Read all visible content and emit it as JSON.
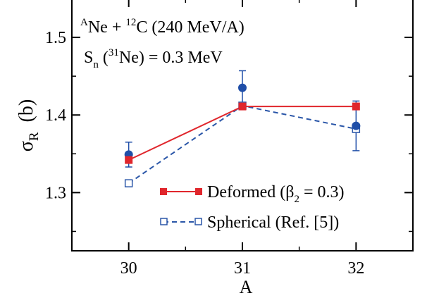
{
  "chart_data": {
    "type": "line",
    "xlabel": "A",
    "ylabel_main": "σ",
    "ylabel_sub": "R",
    "ylabel_unit": "(b)",
    "xlim": [
      29.5,
      32.5
    ],
    "ylim": [
      1.225,
      1.55
    ],
    "x_ticks": [
      30,
      31,
      32
    ],
    "x_tick_labels": [
      "30",
      "31",
      "32"
    ],
    "y_ticks": [
      1.3,
      1.4,
      1.5
    ],
    "y_tick_labels": [
      "1.3",
      "1.4",
      "1.5"
    ],
    "y_minor_ticks": [
      1.25,
      1.35,
      1.45
    ],
    "grid": false,
    "legend_position": "bottom-right",
    "annotations": {
      "reaction": {
        "a_sup": "A",
        "ne": "Ne + ",
        "c_sup": "12",
        "c": "C  (240 MeV/A)"
      },
      "separation": {
        "s": "S",
        "n_sub": "n",
        "open": " (",
        "mass_sup": "31",
        "rest": "Ne) = 0.3 MeV"
      }
    },
    "series": [
      {
        "name_main": "Deformed (β",
        "name_sub": "2",
        "name_rest": " = 0.3)",
        "color": "#e0262c",
        "line_style": "solid",
        "marker": "filled-square",
        "x": [
          30,
          31,
          32
        ],
        "y": [
          1.342,
          1.411,
          1.411
        ]
      },
      {
        "name_main": "Spherical (Ref. [5])",
        "color": "#2a56a8",
        "line_style": "dashed",
        "marker": "open-square",
        "x": [
          30,
          31,
          32
        ],
        "y": [
          1.312,
          1.412,
          1.382
        ]
      }
    ],
    "experiment": {
      "color": "#1f4ea8",
      "marker": "filled-circle",
      "x": [
        30,
        31,
        32
      ],
      "y": [
        1.349,
        1.435,
        1.386
      ],
      "err": [
        0.016,
        0.022,
        0.032
      ]
    }
  }
}
